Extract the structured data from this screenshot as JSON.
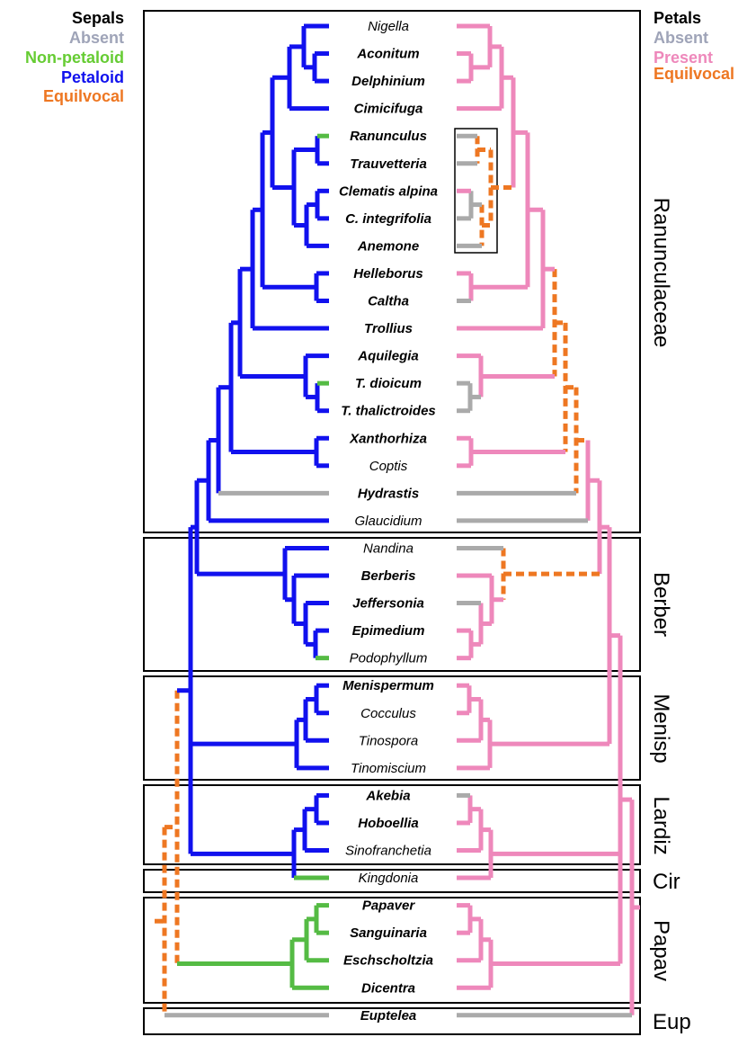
{
  "colors": {
    "absent": "#aaaaaa",
    "nonpetaloid": "#55bb44",
    "petaloid": "#1111ee",
    "present": "#ee88bb",
    "equivocal": "#ee7722",
    "legend_absent_text": "#9fa4b8",
    "legend_nonpetaloid_text": "#66cc33",
    "legend_petaloid_text": "#1111ee",
    "legend_present_text": "#ee88bb",
    "legend_equivocal_text": "#ee7722"
  },
  "legend": {
    "sepals": {
      "title": "Sepals",
      "items": [
        "Absent",
        "Non-petaloid",
        "Petaloid",
        "Equilvocal"
      ]
    },
    "petals": {
      "title": "Petals",
      "items": [
        "Absent",
        "Present",
        "Equilvocal"
      ]
    }
  },
  "taxa": [
    {
      "name": "Nigella",
      "bold": false
    },
    {
      "name": "Aconitum",
      "bold": true
    },
    {
      "name": "Delphinium",
      "bold": true
    },
    {
      "name": "Cimicifuga",
      "bold": true
    },
    {
      "name": "Ranunculus",
      "bold": true
    },
    {
      "name": "Trauvetteria",
      "bold": true
    },
    {
      "name": "Clematis alpina",
      "bold": true
    },
    {
      "name": "C. integrifolia",
      "bold": true
    },
    {
      "name": "Anemone",
      "bold": true
    },
    {
      "name": "Helleborus",
      "bold": true
    },
    {
      "name": "Caltha",
      "bold": true
    },
    {
      "name": "Trollius",
      "bold": true
    },
    {
      "name": "Aquilegia",
      "bold": true
    },
    {
      "name": "T. dioicum",
      "bold": true
    },
    {
      "name": "T. thalictroides",
      "bold": true
    },
    {
      "name": "Xanthorhiza",
      "bold": true
    },
    {
      "name": "Coptis",
      "bold": false
    },
    {
      "name": "Hydrastis",
      "bold": true
    },
    {
      "name": "Glaucidium",
      "bold": false
    },
    {
      "name": "Nandina",
      "bold": false
    },
    {
      "name": "Berberis",
      "bold": true
    },
    {
      "name": "Jeffersonia",
      "bold": true
    },
    {
      "name": "Epimedium",
      "bold": true
    },
    {
      "name": "Podophyllum",
      "bold": false
    },
    {
      "name": "Menispermum",
      "bold": true
    },
    {
      "name": "Cocculus",
      "bold": false
    },
    {
      "name": "Tinospora",
      "bold": false
    },
    {
      "name": "Tinomiscium",
      "bold": false
    },
    {
      "name": "Akebia",
      "bold": true
    },
    {
      "name": "Hoboellia",
      "bold": true
    },
    {
      "name": "Sinofranchetia",
      "bold": false
    },
    {
      "name": "Kingdonia",
      "bold": false
    },
    {
      "name": "Papaver",
      "bold": true
    },
    {
      "name": "Sanguinaria",
      "bold": true
    },
    {
      "name": "Eschscholtzia",
      "bold": true
    },
    {
      "name": "Dicentra",
      "bold": true
    },
    {
      "name": "Euptelea",
      "bold": true
    }
  ],
  "families": [
    "Ranunculaceae",
    "Berber",
    "Menisp",
    "Lardiz",
    "Cir",
    "Papav",
    "Eup"
  ]
}
